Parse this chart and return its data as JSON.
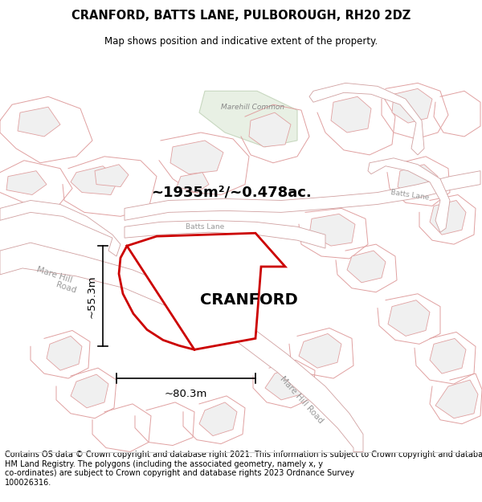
{
  "title": "CRANFORD, BATTS LANE, PULBOROUGH, RH20 2DZ",
  "subtitle": "Map shows position and indicative extent of the property.",
  "area_label": "~1935m²/~0.478ac.",
  "property_name": "CRANFORD",
  "dim1_label": "~55.3m",
  "dim2_label": "~80.3m",
  "footer": "Contains OS data © Crown copyright and database right 2021. This information is subject to Crown copyright and database rights 2023 and is reproduced with the permission of\nHM Land Registry. The polygons (including the associated geometry, namely x, y\nco-ordinates) are subject to Crown copyright and database rights 2023 Ordnance Survey\n100026316.",
  "bg_color": "#ffffff",
  "plot_fill": "#f0f0f0",
  "plot_edge": "#e0a0a0",
  "road_fill": "#ffffff",
  "road_edge": "#d0a0a0",
  "highlight_color": "#cc0000",
  "green_fill": "#e8f0e4",
  "green_edge": "#c8d8c0",
  "title_fontsize": 10.5,
  "subtitle_fontsize": 8.5,
  "footer_fontsize": 7.0,
  "road_label_color": "#999999",
  "road_label_size": 7.5
}
